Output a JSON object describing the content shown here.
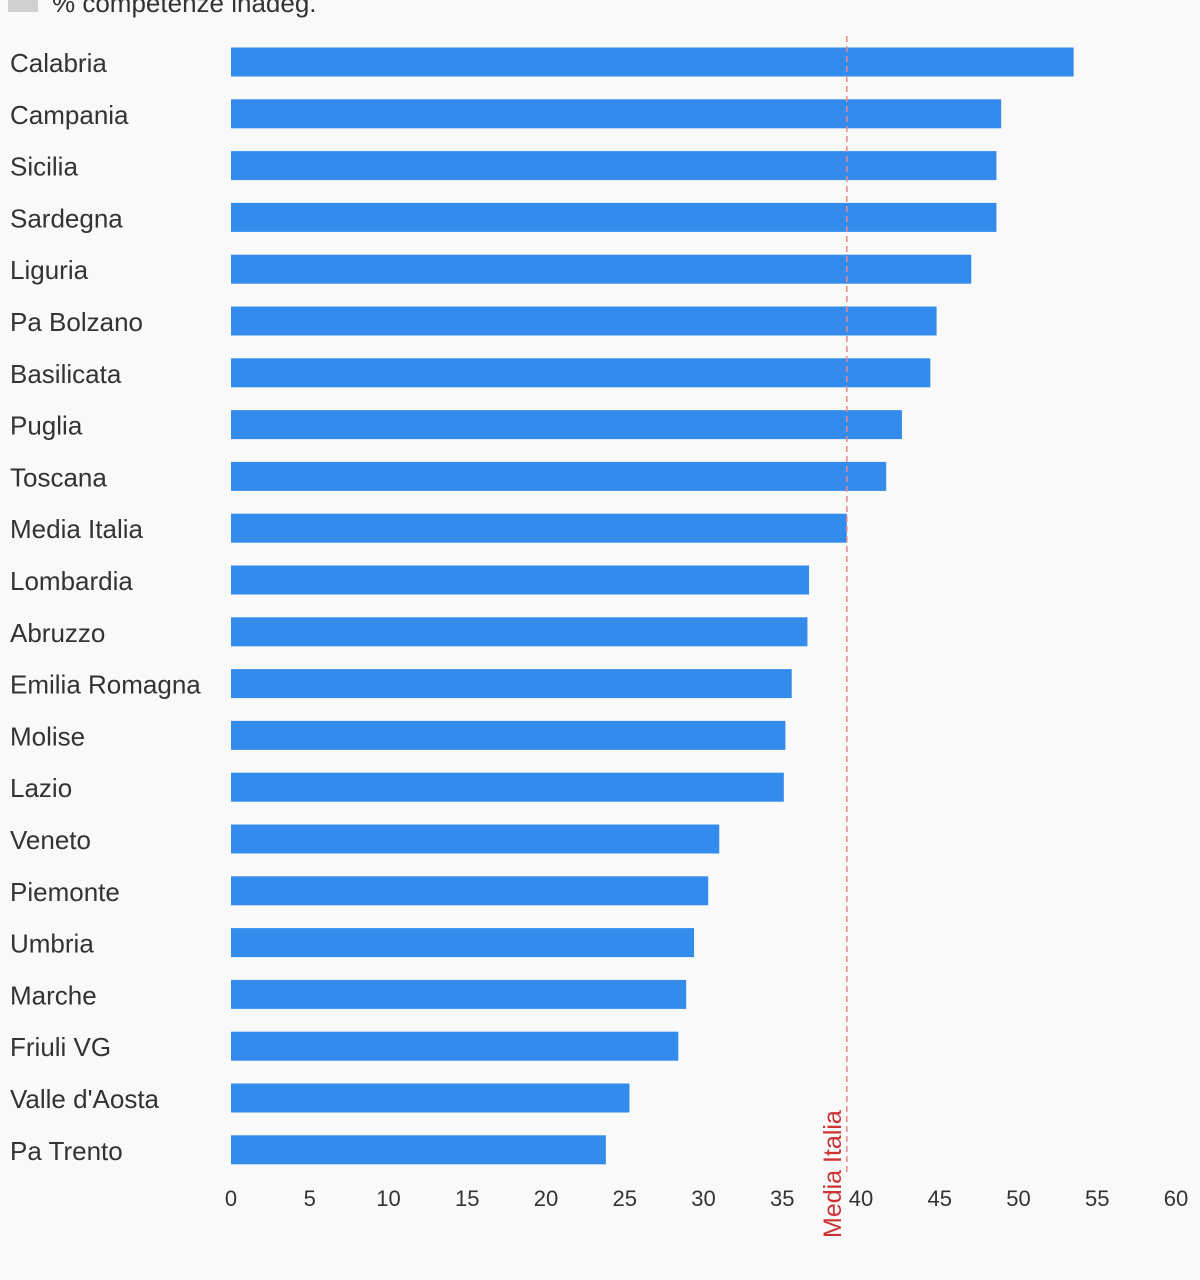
{
  "legend": {
    "label": "% competenze inadeg.",
    "color": "#d0d0d0"
  },
  "chart_data": {
    "type": "bar",
    "orientation": "horizontal",
    "categories": [
      "Calabria",
      "Campania",
      "Sicilia",
      "Sardegna",
      "Liguria",
      "Pa Bolzano",
      "Basilicata",
      "Puglia",
      "Toscana",
      "Media Italia",
      "Lombardia",
      "Abruzzo",
      "Emilia Romagna",
      "Molise",
      "Lazio",
      "Veneto",
      "Piemonte",
      "Umbria",
      "Marche",
      "Friuli VG",
      "Valle d'Aosta",
      "Pa Trento"
    ],
    "values": [
      53.5,
      48.9,
      48.6,
      48.6,
      47.0,
      44.8,
      44.4,
      42.6,
      41.6,
      39.1,
      36.7,
      36.6,
      35.6,
      35.2,
      35.1,
      31.0,
      30.3,
      29.4,
      28.9,
      28.4,
      25.3,
      23.8
    ],
    "bar_color": "#338bec",
    "xlim": [
      0,
      60
    ],
    "x_ticks": [
      0,
      5,
      10,
      15,
      20,
      25,
      30,
      35,
      40,
      45,
      50,
      55,
      60
    ],
    "reference_line": {
      "value": 39.1,
      "label": "Media Italia",
      "color": "#e88a8a",
      "label_color": "#cc3333"
    },
    "grid": false
  }
}
